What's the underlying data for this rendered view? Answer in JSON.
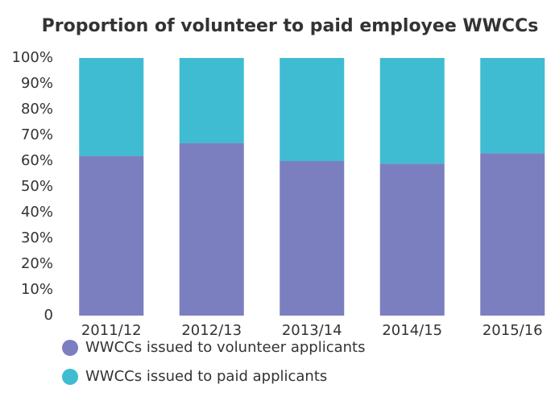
{
  "chart_data": {
    "type": "stacked_bar",
    "title": "Proportion of volunteer to paid employee WWCCs",
    "categories": [
      "2011/12",
      "2012/13",
      "2013/14",
      "2014/15",
      "2015/16"
    ],
    "series": [
      {
        "name": "WWCCs issued to volunteer applicants",
        "color": "#7b7fbf",
        "values": [
          62,
          67,
          60,
          59,
          63
        ]
      },
      {
        "name": "WWCCs issued to paid applicants",
        "color": "#3fbcd1",
        "values": [
          38,
          33,
          40,
          41,
          37
        ]
      }
    ],
    "ylim": [
      0,
      100
    ],
    "yticks": [
      0,
      {
        "value": 10,
        "label": "10%"
      },
      {
        "value": 20,
        "label": "20%"
      },
      {
        "value": 30,
        "label": "30%"
      },
      {
        "value": 40,
        "label": "40%"
      },
      {
        "value": 50,
        "label": "50%"
      },
      {
        "value": 60,
        "label": "60%"
      },
      {
        "value": 70,
        "label": "70%"
      },
      {
        "value": 80,
        "label": "80%"
      },
      {
        "value": 90,
        "label": "90%"
      },
      {
        "value": 100,
        "label": "100%"
      }
    ],
    "grid": false
  }
}
